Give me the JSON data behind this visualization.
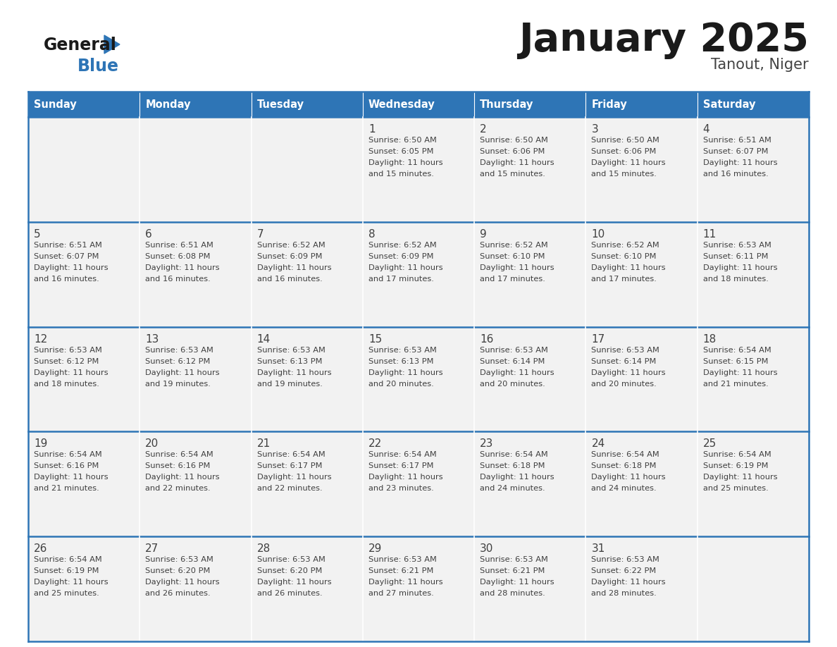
{
  "title": "January 2025",
  "subtitle": "Tanout, Niger",
  "header_color": "#2E75B6",
  "header_text_color": "#FFFFFF",
  "cell_bg_color": "#F2F2F2",
  "border_color": "#2E75B6",
  "text_color": "#404040",
  "day_headers": [
    "Sunday",
    "Monday",
    "Tuesday",
    "Wednesday",
    "Thursday",
    "Friday",
    "Saturday"
  ],
  "calendar_data": [
    [
      {
        "day": "",
        "sunrise": "",
        "sunset": "",
        "daylight_hours": "",
        "daylight_mins": ""
      },
      {
        "day": "",
        "sunrise": "",
        "sunset": "",
        "daylight_hours": "",
        "daylight_mins": ""
      },
      {
        "day": "",
        "sunrise": "",
        "sunset": "",
        "daylight_hours": "",
        "daylight_mins": ""
      },
      {
        "day": "1",
        "sunrise": "6:50 AM",
        "sunset": "6:05 PM",
        "daylight_hours": "11",
        "daylight_mins": "15"
      },
      {
        "day": "2",
        "sunrise": "6:50 AM",
        "sunset": "6:06 PM",
        "daylight_hours": "11",
        "daylight_mins": "15"
      },
      {
        "day": "3",
        "sunrise": "6:50 AM",
        "sunset": "6:06 PM",
        "daylight_hours": "11",
        "daylight_mins": "15"
      },
      {
        "day": "4",
        "sunrise": "6:51 AM",
        "sunset": "6:07 PM",
        "daylight_hours": "11",
        "daylight_mins": "16"
      }
    ],
    [
      {
        "day": "5",
        "sunrise": "6:51 AM",
        "sunset": "6:07 PM",
        "daylight_hours": "11",
        "daylight_mins": "16"
      },
      {
        "day": "6",
        "sunrise": "6:51 AM",
        "sunset": "6:08 PM",
        "daylight_hours": "11",
        "daylight_mins": "16"
      },
      {
        "day": "7",
        "sunrise": "6:52 AM",
        "sunset": "6:09 PM",
        "daylight_hours": "11",
        "daylight_mins": "16"
      },
      {
        "day": "8",
        "sunrise": "6:52 AM",
        "sunset": "6:09 PM",
        "daylight_hours": "11",
        "daylight_mins": "17"
      },
      {
        "day": "9",
        "sunrise": "6:52 AM",
        "sunset": "6:10 PM",
        "daylight_hours": "11",
        "daylight_mins": "17"
      },
      {
        "day": "10",
        "sunrise": "6:52 AM",
        "sunset": "6:10 PM",
        "daylight_hours": "11",
        "daylight_mins": "17"
      },
      {
        "day": "11",
        "sunrise": "6:53 AM",
        "sunset": "6:11 PM",
        "daylight_hours": "11",
        "daylight_mins": "18"
      }
    ],
    [
      {
        "day": "12",
        "sunrise": "6:53 AM",
        "sunset": "6:12 PM",
        "daylight_hours": "11",
        "daylight_mins": "18"
      },
      {
        "day": "13",
        "sunrise": "6:53 AM",
        "sunset": "6:12 PM",
        "daylight_hours": "11",
        "daylight_mins": "19"
      },
      {
        "day": "14",
        "sunrise": "6:53 AM",
        "sunset": "6:13 PM",
        "daylight_hours": "11",
        "daylight_mins": "19"
      },
      {
        "day": "15",
        "sunrise": "6:53 AM",
        "sunset": "6:13 PM",
        "daylight_hours": "11",
        "daylight_mins": "20"
      },
      {
        "day": "16",
        "sunrise": "6:53 AM",
        "sunset": "6:14 PM",
        "daylight_hours": "11",
        "daylight_mins": "20"
      },
      {
        "day": "17",
        "sunrise": "6:53 AM",
        "sunset": "6:14 PM",
        "daylight_hours": "11",
        "daylight_mins": "20"
      },
      {
        "day": "18",
        "sunrise": "6:54 AM",
        "sunset": "6:15 PM",
        "daylight_hours": "11",
        "daylight_mins": "21"
      }
    ],
    [
      {
        "day": "19",
        "sunrise": "6:54 AM",
        "sunset": "6:16 PM",
        "daylight_hours": "11",
        "daylight_mins": "21"
      },
      {
        "day": "20",
        "sunrise": "6:54 AM",
        "sunset": "6:16 PM",
        "daylight_hours": "11",
        "daylight_mins": "22"
      },
      {
        "day": "21",
        "sunrise": "6:54 AM",
        "sunset": "6:17 PM",
        "daylight_hours": "11",
        "daylight_mins": "22"
      },
      {
        "day": "22",
        "sunrise": "6:54 AM",
        "sunset": "6:17 PM",
        "daylight_hours": "11",
        "daylight_mins": "23"
      },
      {
        "day": "23",
        "sunrise": "6:54 AM",
        "sunset": "6:18 PM",
        "daylight_hours": "11",
        "daylight_mins": "24"
      },
      {
        "day": "24",
        "sunrise": "6:54 AM",
        "sunset": "6:18 PM",
        "daylight_hours": "11",
        "daylight_mins": "24"
      },
      {
        "day": "25",
        "sunrise": "6:54 AM",
        "sunset": "6:19 PM",
        "daylight_hours": "11",
        "daylight_mins": "25"
      }
    ],
    [
      {
        "day": "26",
        "sunrise": "6:54 AM",
        "sunset": "6:19 PM",
        "daylight_hours": "11",
        "daylight_mins": "25"
      },
      {
        "day": "27",
        "sunrise": "6:53 AM",
        "sunset": "6:20 PM",
        "daylight_hours": "11",
        "daylight_mins": "26"
      },
      {
        "day": "28",
        "sunrise": "6:53 AM",
        "sunset": "6:20 PM",
        "daylight_hours": "11",
        "daylight_mins": "26"
      },
      {
        "day": "29",
        "sunrise": "6:53 AM",
        "sunset": "6:21 PM",
        "daylight_hours": "11",
        "daylight_mins": "27"
      },
      {
        "day": "30",
        "sunrise": "6:53 AM",
        "sunset": "6:21 PM",
        "daylight_hours": "11",
        "daylight_mins": "28"
      },
      {
        "day": "31",
        "sunrise": "6:53 AM",
        "sunset": "6:22 PM",
        "daylight_hours": "11",
        "daylight_mins": "28"
      },
      {
        "day": "",
        "sunrise": "",
        "sunset": "",
        "daylight_hours": "",
        "daylight_mins": ""
      }
    ]
  ]
}
